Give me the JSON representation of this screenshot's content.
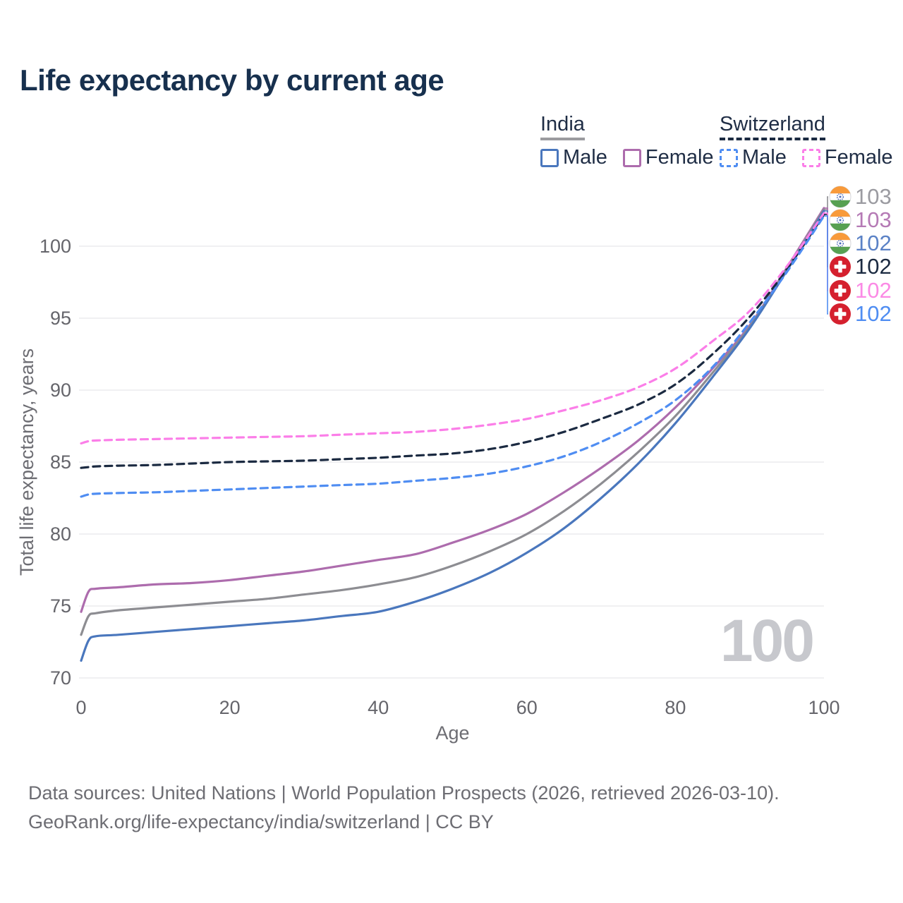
{
  "title": "Life expectancy by current age",
  "legend": {
    "groups": [
      {
        "id": "india",
        "label": "India",
        "line_style": "solid",
        "underline_color": "#9b9b9f",
        "items": [
          {
            "label": "Male",
            "color": "#4a77bd"
          },
          {
            "label": "Female",
            "color": "#ad6cad"
          }
        ]
      },
      {
        "id": "switzerland",
        "label": "Switzerland",
        "line_style": "dashed",
        "underline_color": "#1b2a41",
        "items": [
          {
            "label": "Male",
            "color": "#4f8df2"
          },
          {
            "label": "Female",
            "color": "#fb7ee8"
          }
        ]
      }
    ]
  },
  "chart_data": {
    "type": "line",
    "title": "Life expectancy by current age",
    "xlabel": "Age",
    "ylabel": "Total life expectancy, years",
    "x_ticks": [
      0,
      20,
      40,
      60,
      80,
      100
    ],
    "y_ticks": [
      70,
      75,
      80,
      85,
      90,
      95,
      100
    ],
    "xlim": [
      0,
      100
    ],
    "ylim": [
      70,
      100
    ],
    "grid": true,
    "legend_position": "top-right",
    "watermark": "100",
    "colors": {
      "india_male": "#4a77bd",
      "india_total": "#8d8d92",
      "india_female": "#ad6cad",
      "switzerland_male": "#4f8df2",
      "switzerland_total": "#1b2a41",
      "switzerland_female": "#fb7ee8",
      "gridline": "#ebebee",
      "tick_text": "#65656b",
      "axis_title_text": "#6d6d73"
    },
    "series": [
      {
        "id": "india_female",
        "name": "India Female",
        "country": "India",
        "sex": "Female",
        "color": "#ad6cad",
        "dash": false,
        "flag_icon": "india-flag-icon",
        "end_label": "103",
        "end_label_color": "#b57ab5",
        "label_row": 1,
        "points": [
          [
            0,
            74.6
          ],
          [
            1,
            76.0
          ],
          [
            2,
            76.2
          ],
          [
            5,
            76.3
          ],
          [
            10,
            76.5
          ],
          [
            15,
            76.6
          ],
          [
            20,
            76.8
          ],
          [
            25,
            77.1
          ],
          [
            30,
            77.4
          ],
          [
            35,
            77.8
          ],
          [
            40,
            78.2
          ],
          [
            45,
            78.6
          ],
          [
            50,
            79.4
          ],
          [
            55,
            80.3
          ],
          [
            60,
            81.4
          ],
          [
            65,
            82.9
          ],
          [
            70,
            84.6
          ],
          [
            75,
            86.5
          ],
          [
            80,
            88.8
          ],
          [
            85,
            91.5
          ],
          [
            90,
            94.5
          ],
          [
            95,
            98.5
          ],
          [
            100,
            102.65
          ]
        ]
      },
      {
        "id": "india_total",
        "name": "India",
        "country": "India",
        "sex": "Both",
        "color": "#8d8d92",
        "dash": false,
        "flag_icon": "india-flag-icon",
        "end_label": "103",
        "end_label_color": "#9b9ba1",
        "label_row": 0,
        "points": [
          [
            0,
            73.0
          ],
          [
            1,
            74.3
          ],
          [
            2,
            74.5
          ],
          [
            5,
            74.7
          ],
          [
            10,
            74.9
          ],
          [
            15,
            75.1
          ],
          [
            20,
            75.3
          ],
          [
            25,
            75.5
          ],
          [
            30,
            75.8
          ],
          [
            35,
            76.1
          ],
          [
            40,
            76.5
          ],
          [
            45,
            77.0
          ],
          [
            50,
            77.8
          ],
          [
            55,
            78.8
          ],
          [
            60,
            80.0
          ],
          [
            65,
            81.6
          ],
          [
            70,
            83.5
          ],
          [
            75,
            85.7
          ],
          [
            80,
            88.2
          ],
          [
            85,
            91.2
          ],
          [
            90,
            94.4
          ],
          [
            95,
            98.4
          ],
          [
            100,
            102.55
          ]
        ]
      },
      {
        "id": "india_male",
        "name": "India Male",
        "country": "India",
        "sex": "Male",
        "color": "#4a77bd",
        "dash": false,
        "flag_icon": "india-flag-icon",
        "end_label": "102",
        "end_label_color": "#5b82c6",
        "label_row": 2,
        "points": [
          [
            0,
            71.2
          ],
          [
            1,
            72.6
          ],
          [
            2,
            72.9
          ],
          [
            5,
            73.0
          ],
          [
            10,
            73.2
          ],
          [
            15,
            73.4
          ],
          [
            20,
            73.6
          ],
          [
            25,
            73.8
          ],
          [
            30,
            74.0
          ],
          [
            35,
            74.3
          ],
          [
            40,
            74.6
          ],
          [
            45,
            75.3
          ],
          [
            50,
            76.2
          ],
          [
            55,
            77.3
          ],
          [
            60,
            78.7
          ],
          [
            65,
            80.4
          ],
          [
            70,
            82.5
          ],
          [
            75,
            84.9
          ],
          [
            80,
            87.7
          ],
          [
            85,
            90.9
          ],
          [
            90,
            94.3
          ],
          [
            95,
            98.3
          ],
          [
            100,
            102.45
          ]
        ]
      },
      {
        "id": "switzerland_total",
        "name": "Switzerland",
        "country": "Switzerland",
        "sex": "Both",
        "color": "#1b2a41",
        "dash": true,
        "flag_icon": "switzerland-flag-icon",
        "end_label": "102",
        "end_label_color": "#1b2a41",
        "label_row": 3,
        "points": [
          [
            0,
            84.6
          ],
          [
            1,
            84.65
          ],
          [
            2,
            84.7
          ],
          [
            5,
            84.75
          ],
          [
            10,
            84.8
          ],
          [
            15,
            84.9
          ],
          [
            20,
            85.0
          ],
          [
            25,
            85.05
          ],
          [
            30,
            85.1
          ],
          [
            35,
            85.2
          ],
          [
            40,
            85.3
          ],
          [
            45,
            85.45
          ],
          [
            50,
            85.6
          ],
          [
            55,
            85.9
          ],
          [
            60,
            86.4
          ],
          [
            65,
            87.1
          ],
          [
            70,
            88.0
          ],
          [
            75,
            89.0
          ],
          [
            80,
            90.4
          ],
          [
            85,
            92.5
          ],
          [
            90,
            95.1
          ],
          [
            95,
            98.4
          ],
          [
            100,
            102.2
          ]
        ]
      },
      {
        "id": "switzerland_female",
        "name": "Switzerland Female",
        "country": "Switzerland",
        "sex": "Female",
        "color": "#fb7ee8",
        "dash": true,
        "flag_icon": "switzerland-flag-icon",
        "end_label": "102",
        "end_label_color": "#fb8ae5",
        "label_row": 4,
        "points": [
          [
            0,
            86.3
          ],
          [
            1,
            86.45
          ],
          [
            2,
            86.5
          ],
          [
            5,
            86.55
          ],
          [
            10,
            86.6
          ],
          [
            15,
            86.65
          ],
          [
            20,
            86.7
          ],
          [
            25,
            86.75
          ],
          [
            30,
            86.8
          ],
          [
            35,
            86.9
          ],
          [
            40,
            87.0
          ],
          [
            45,
            87.1
          ],
          [
            50,
            87.3
          ],
          [
            55,
            87.6
          ],
          [
            60,
            88.0
          ],
          [
            65,
            88.6
          ],
          [
            70,
            89.3
          ],
          [
            75,
            90.2
          ],
          [
            80,
            91.5
          ],
          [
            85,
            93.4
          ],
          [
            90,
            95.5
          ],
          [
            95,
            98.6
          ],
          [
            100,
            102.3
          ]
        ]
      },
      {
        "id": "switzerland_male",
        "name": "Switzerland Male",
        "country": "Switzerland",
        "sex": "Male",
        "color": "#4f8df2",
        "dash": true,
        "flag_icon": "switzerland-flag-icon",
        "end_label": "102",
        "end_label_color": "#4f8df2",
        "label_row": 5,
        "points": [
          [
            0,
            82.6
          ],
          [
            1,
            82.75
          ],
          [
            2,
            82.8
          ],
          [
            5,
            82.85
          ],
          [
            10,
            82.9
          ],
          [
            15,
            83.0
          ],
          [
            20,
            83.1
          ],
          [
            25,
            83.2
          ],
          [
            30,
            83.3
          ],
          [
            35,
            83.4
          ],
          [
            40,
            83.5
          ],
          [
            45,
            83.7
          ],
          [
            50,
            83.9
          ],
          [
            55,
            84.2
          ],
          [
            60,
            84.7
          ],
          [
            65,
            85.4
          ],
          [
            70,
            86.4
          ],
          [
            75,
            87.7
          ],
          [
            80,
            89.3
          ],
          [
            85,
            91.6
          ],
          [
            90,
            94.7
          ],
          [
            95,
            98.2
          ],
          [
            100,
            102.1
          ]
        ]
      }
    ]
  },
  "footer": {
    "line1": "Data sources: United Nations | World Population Prospects (2026, retrieved 2026-03-10).",
    "line2": "GeoRank.org/life-expectancy/india/switzerland | CC BY"
  }
}
